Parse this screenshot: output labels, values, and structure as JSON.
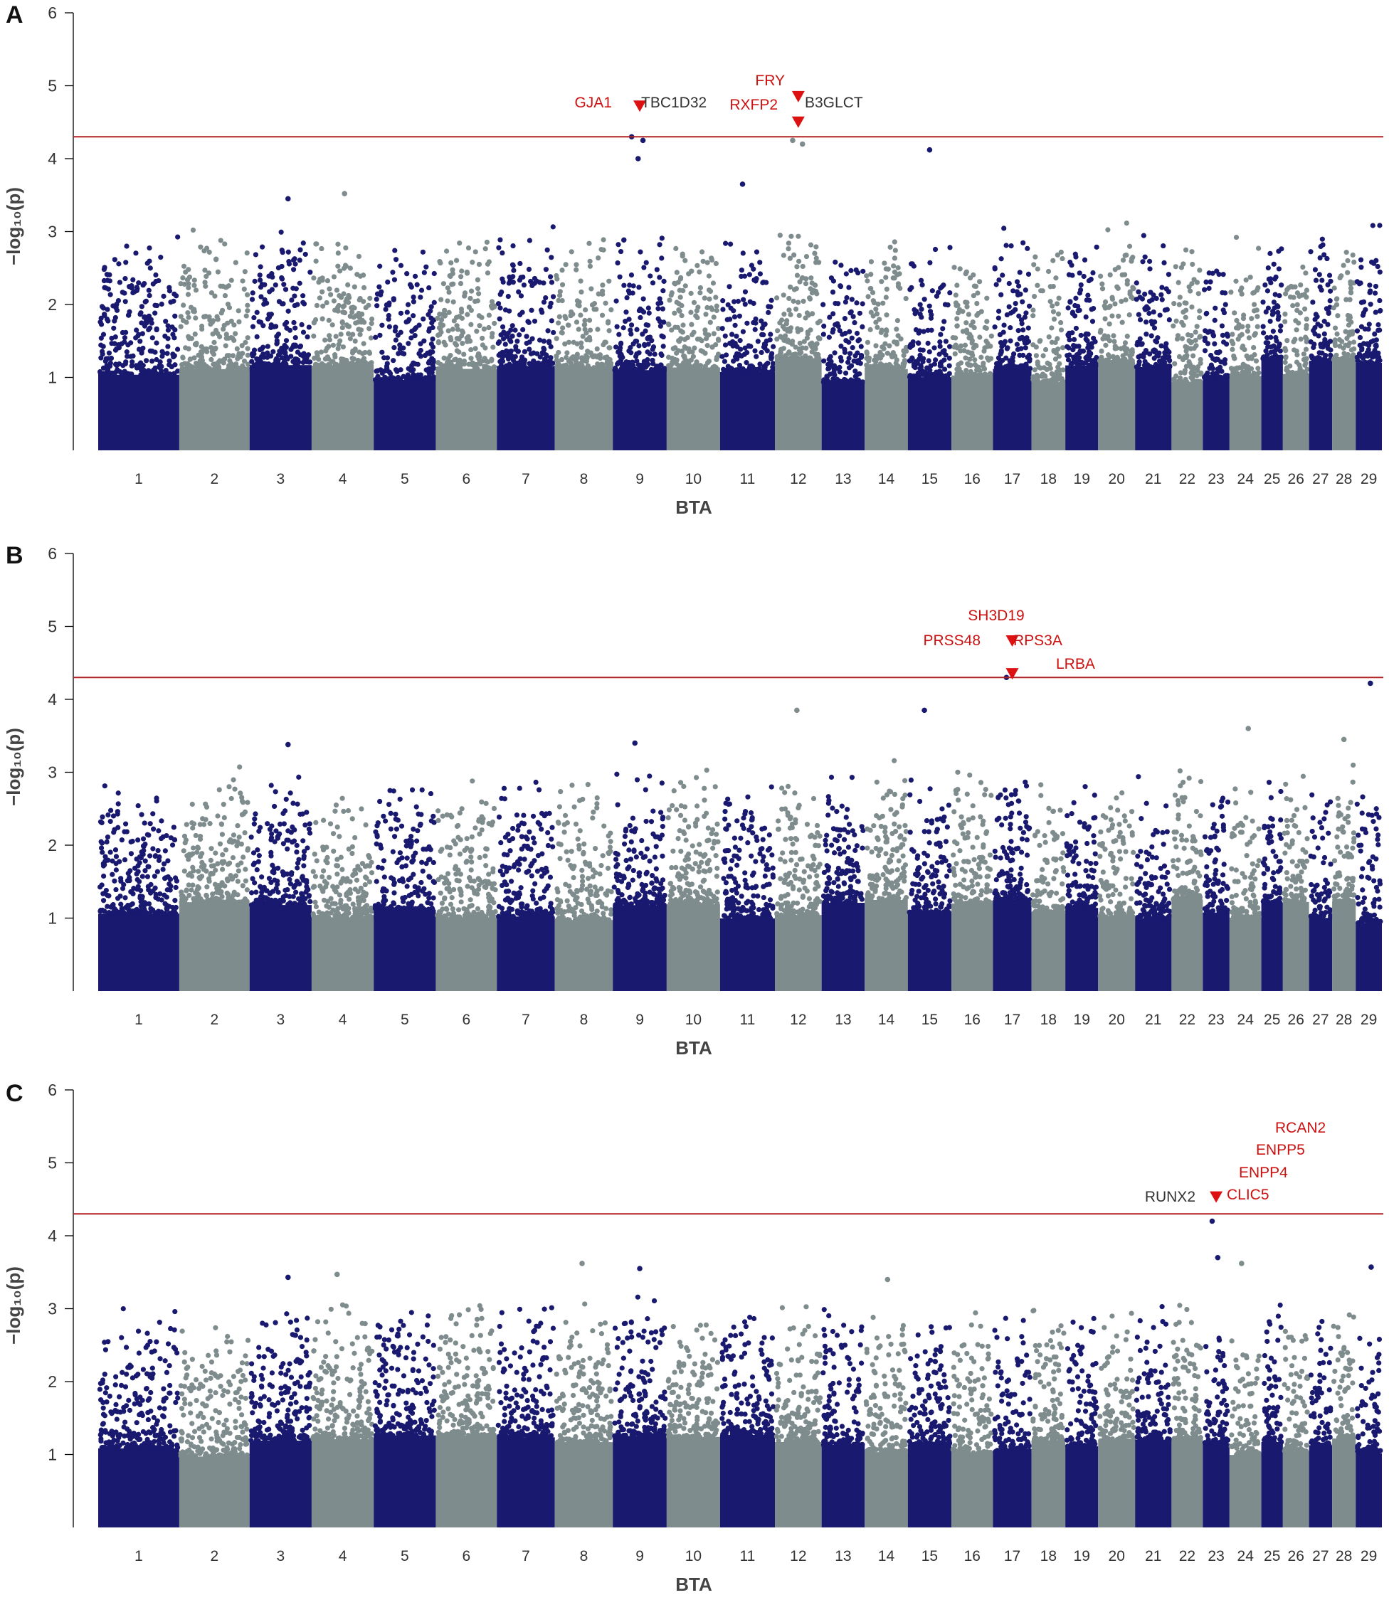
{
  "chart_data": [
    {
      "type": "scatter",
      "panel": "A",
      "xlabel": "BTA",
      "ylabel": "−log₁₀(p)",
      "ylim": [
        0,
        6
      ],
      "yticks": [
        1,
        2,
        3,
        4,
        5,
        6
      ],
      "threshold": 4.3,
      "chromosomes": [
        "1",
        "2",
        "3",
        "4",
        "5",
        "6",
        "7",
        "8",
        "9",
        "10",
        "11",
        "12",
        "13",
        "14",
        "15",
        "16",
        "17",
        "18",
        "19",
        "20",
        "21",
        "22",
        "23",
        "24",
        "25",
        "26",
        "27",
        "28",
        "29"
      ],
      "top_points": [
        {
          "chr": "9",
          "value": 4.3
        },
        {
          "chr": "9",
          "value": 4.25
        },
        {
          "chr": "9",
          "value": 4.0
        },
        {
          "chr": "12",
          "value": 4.25
        },
        {
          "chr": "12",
          "value": 4.2
        },
        {
          "chr": "15",
          "value": 4.12
        },
        {
          "chr": "11",
          "value": 3.65
        },
        {
          "chr": "3",
          "value": 3.45
        },
        {
          "chr": "4",
          "value": 3.52
        }
      ],
      "markers": [
        {
          "chr": "9",
          "value": 4.72
        },
        {
          "chr": "12",
          "value": 4.85
        },
        {
          "chr": "12",
          "value": 4.5
        }
      ],
      "annotations": [
        {
          "text": "GJA1",
          "color": "#cc1111"
        },
        {
          "text": "TBC1D32",
          "color": "#333333"
        },
        {
          "text": "FRY",
          "color": "#cc1111"
        },
        {
          "text": "RXFP2",
          "color": "#cc1111"
        },
        {
          "text": "B3GLCT",
          "color": "#333333"
        }
      ]
    },
    {
      "type": "scatter",
      "panel": "B",
      "xlabel": "BTA",
      "ylabel": "−log₁₀(p)",
      "ylim": [
        0,
        6
      ],
      "yticks": [
        1,
        2,
        3,
        4,
        5,
        6
      ],
      "threshold": 4.3,
      "chromosomes": [
        "1",
        "2",
        "3",
        "4",
        "5",
        "6",
        "7",
        "8",
        "9",
        "10",
        "11",
        "12",
        "13",
        "14",
        "15",
        "16",
        "17",
        "18",
        "19",
        "20",
        "21",
        "22",
        "23",
        "24",
        "25",
        "26",
        "27",
        "28",
        "29"
      ],
      "top_points": [
        {
          "chr": "17",
          "value": 4.3
        },
        {
          "chr": "29",
          "value": 4.22
        },
        {
          "chr": "12",
          "value": 3.85
        },
        {
          "chr": "15",
          "value": 3.85
        },
        {
          "chr": "24",
          "value": 3.6
        },
        {
          "chr": "28",
          "value": 3.45
        },
        {
          "chr": "9",
          "value": 3.4
        },
        {
          "chr": "3",
          "value": 3.38
        }
      ],
      "markers": [
        {
          "chr": "17",
          "value": 4.8
        },
        {
          "chr": "17",
          "value": 4.35
        }
      ],
      "annotations": [
        {
          "text": "SH3D19",
          "color": "#cc1111"
        },
        {
          "text": "PRSS48",
          "color": "#cc1111"
        },
        {
          "text": "RPS3A",
          "color": "#cc1111"
        },
        {
          "text": "LRBA",
          "color": "#cc1111"
        }
      ]
    },
    {
      "type": "scatter",
      "panel": "C",
      "xlabel": "BTA",
      "ylabel": "−log₁₀(p)",
      "ylim": [
        0,
        6
      ],
      "yticks": [
        1,
        2,
        3,
        4,
        5,
        6
      ],
      "threshold": 4.3,
      "chromosomes": [
        "1",
        "2",
        "3",
        "4",
        "5",
        "6",
        "7",
        "8",
        "9",
        "10",
        "11",
        "12",
        "13",
        "14",
        "15",
        "16",
        "17",
        "18",
        "19",
        "20",
        "21",
        "22",
        "23",
        "24",
        "25",
        "26",
        "27",
        "28",
        "29"
      ],
      "top_points": [
        {
          "chr": "23",
          "value": 4.2
        },
        {
          "chr": "23",
          "value": 3.7
        },
        {
          "chr": "8",
          "value": 3.62
        },
        {
          "chr": "24",
          "value": 3.62
        },
        {
          "chr": "29",
          "value": 3.57
        },
        {
          "chr": "9",
          "value": 3.55
        },
        {
          "chr": "4",
          "value": 3.47
        },
        {
          "chr": "3",
          "value": 3.43
        },
        {
          "chr": "14",
          "value": 3.4
        }
      ],
      "markers": [
        {
          "chr": "23",
          "value": 4.53
        }
      ],
      "annotations": [
        {
          "text": "RCAN2",
          "color": "#cc1111"
        },
        {
          "text": "ENPP5",
          "color": "#cc1111"
        },
        {
          "text": "ENPP4",
          "color": "#cc1111"
        },
        {
          "text": "RUNX2",
          "color": "#333333"
        },
        {
          "text": "CLIC5",
          "color": "#cc1111"
        }
      ]
    }
  ],
  "colors": {
    "odd_chromosome": "#191970",
    "even_chromosome": "#7f8c8d",
    "threshold": "#b22222",
    "marker": "#dd1111"
  }
}
